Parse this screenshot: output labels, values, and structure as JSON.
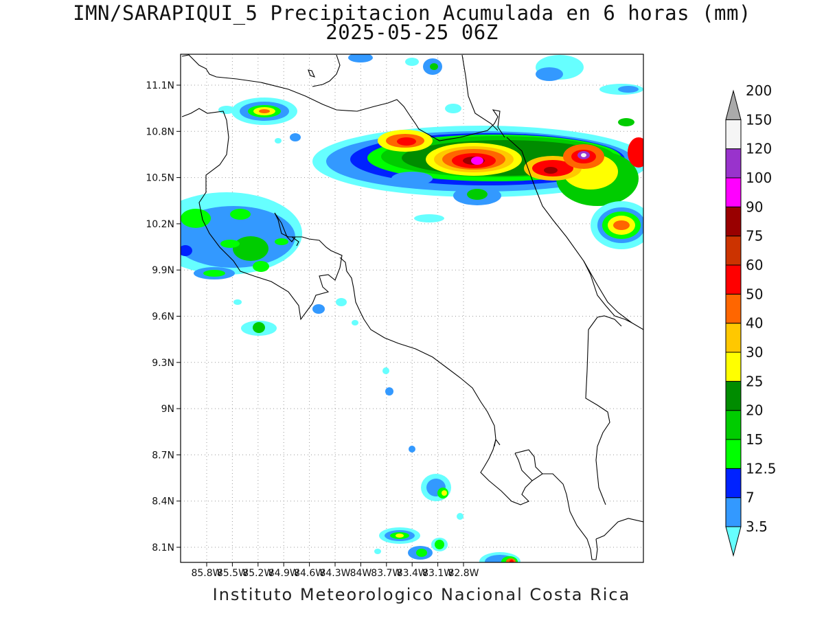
{
  "title": {
    "line1": "IMN/SARAPIQUI_5 Precipitacion Acumulada en 6 horas (mm)",
    "line2": "2025-05-25 06Z"
  },
  "footer": "Instituto Meteorologico Nacional Costa Rica",
  "map": {
    "lon_range": [
      -86.0,
      -83.0
    ],
    "lat_range": [
      8.0,
      11.3
    ],
    "lon_ticks": [
      "85.8W",
      "85.5W",
      "85.2W",
      "84.9W",
      "84.6W",
      "84.3W",
      "84W",
      "83.7W",
      "83.4W",
      "83.1W",
      "82.8W"
    ],
    "lat_ticks": [
      "11.1N",
      "10.8N",
      "10.5N",
      "10.2N",
      "9.9N",
      "9.6N",
      "9.3N",
      "9N",
      "8.7N",
      "8.4N",
      "8.1N"
    ]
  },
  "colorbar": {
    "levels": [
      "3.5",
      "7",
      "12.5",
      "15",
      "20",
      "25",
      "30",
      "40",
      "50",
      "60",
      "75",
      "90",
      "100",
      "120",
      "150",
      "200"
    ],
    "colors": [
      "#66ffff",
      "#3399ff",
      "#0022ff",
      "#00ff00",
      "#00cc00",
      "#008c00",
      "#ffff00",
      "#ffc800",
      "#ff6600",
      "#ff0000",
      "#cc3300",
      "#990000",
      "#ff00ff",
      "#9933cc",
      "#f5f5f5",
      "#aaaaaa"
    ]
  }
}
